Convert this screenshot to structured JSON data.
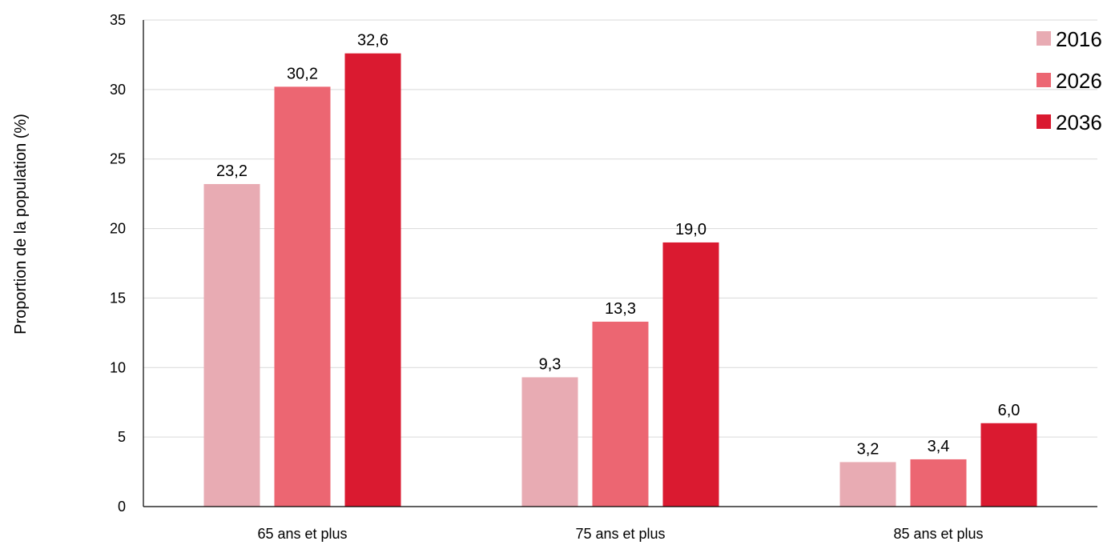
{
  "chart_data": {
    "type": "bar",
    "ylabel": "Proportion de la population (%)",
    "ylim": [
      0,
      35
    ],
    "yticks": [
      0,
      5,
      10,
      15,
      20,
      25,
      30,
      35
    ],
    "grid": true,
    "legend_position": "top-right",
    "categories": [
      "65 ans et plus",
      "75 ans et plus",
      "85 ans et plus"
    ],
    "series": [
      {
        "name": "2016",
        "color": "#e8abb3",
        "values": [
          23.2,
          9.3,
          3.2
        ],
        "labels": [
          "23,2",
          "9,3",
          "3,2"
        ]
      },
      {
        "name": "2026",
        "color": "#ec6672",
        "values": [
          30.2,
          13.3,
          3.4
        ],
        "labels": [
          "30,2",
          "13,3",
          "3,4"
        ]
      },
      {
        "name": "2036",
        "color": "#da1a30",
        "values": [
          32.6,
          19.0,
          6.0
        ],
        "labels": [
          "32,6",
          "19,0",
          "6,0"
        ]
      }
    ]
  }
}
